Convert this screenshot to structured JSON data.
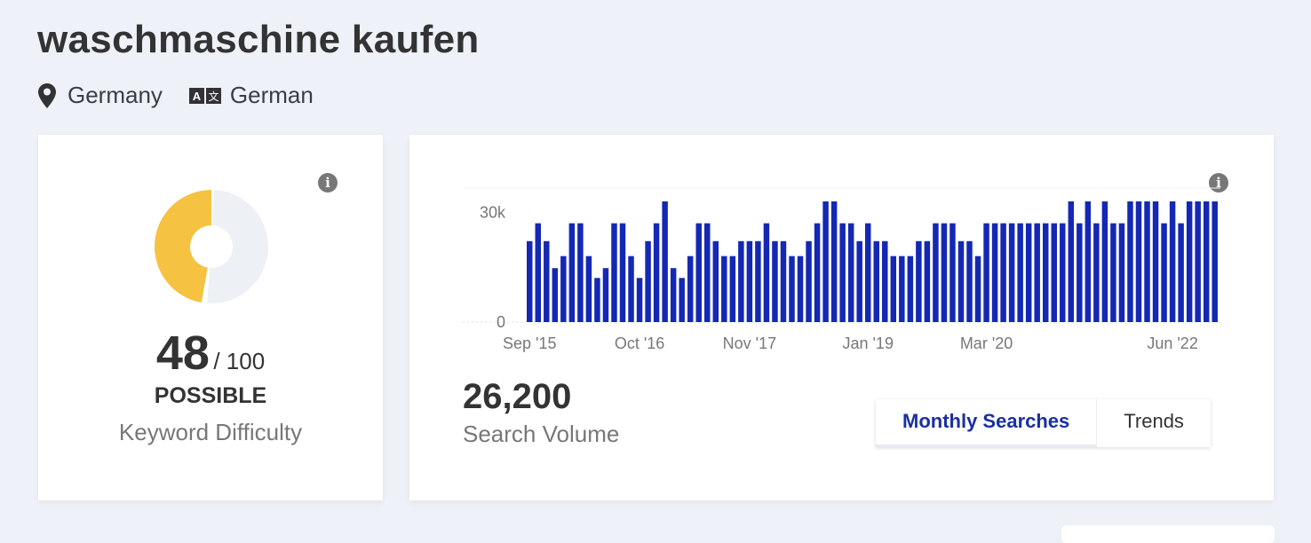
{
  "keyword": "waschmaschine kaufen",
  "location": {
    "icon": "map-pin-icon",
    "label": "Germany"
  },
  "language": {
    "icon": "translate-icon",
    "label": "German"
  },
  "difficulty": {
    "score": "48",
    "max": "/ 100",
    "score_value": 48,
    "level": "POSSIBLE",
    "label": "Keyword Difficulty",
    "colors": {
      "filled": "#F5C242",
      "empty": "#EDF0F5"
    },
    "info_icon": "info-icon"
  },
  "volume": {
    "value": "26,200",
    "label": "Search Volume",
    "info_icon": "info-icon",
    "toggle": {
      "monthly": "Monthly Searches",
      "trends": "Trends",
      "active": "monthly"
    }
  },
  "chart_data": {
    "type": "bar",
    "bar_color": "#1428B4",
    "ylim": [
      0,
      33100
    ],
    "y_ticks": [
      {
        "value": 0,
        "label": "0"
      },
      {
        "value": 30000,
        "label": "30k"
      }
    ],
    "x_ticks": [
      {
        "index": 0,
        "label": "Sep '15"
      },
      {
        "index": 13,
        "label": "Oct '16"
      },
      {
        "index": 26,
        "label": "Nov '17"
      },
      {
        "index": 40,
        "label": "Jan '19"
      },
      {
        "index": 54,
        "label": "Mar '20"
      },
      {
        "index": 76,
        "label": "Jun '22"
      }
    ],
    "values": [
      22200,
      27100,
      22200,
      14800,
      18100,
      27100,
      27100,
      18100,
      12100,
      14800,
      27100,
      27100,
      18100,
      12100,
      22200,
      27100,
      33100,
      14800,
      12100,
      18100,
      27100,
      27100,
      22200,
      18100,
      18100,
      22200,
      22200,
      22200,
      27100,
      22200,
      22200,
      18100,
      18100,
      22200,
      27100,
      33100,
      33100,
      27100,
      27100,
      22200,
      27100,
      22200,
      22200,
      18100,
      18100,
      18100,
      22200,
      22200,
      27100,
      27100,
      27100,
      22200,
      22200,
      18100,
      27100,
      27100,
      27100,
      27100,
      27100,
      27100,
      27100,
      27100,
      27100,
      27100,
      33100,
      27100,
      33100,
      27100,
      33100,
      27100,
      27100,
      33100,
      33100,
      33100,
      33100,
      27100,
      33100,
      27100,
      33100,
      33100,
      33100,
      33100
    ]
  }
}
